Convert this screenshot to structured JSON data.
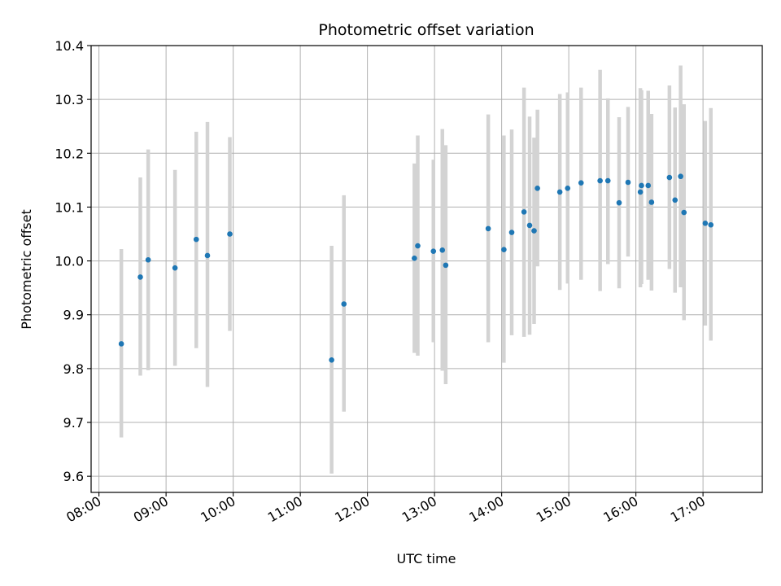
{
  "chart_data": {
    "type": "scatter",
    "title": "Photometric offset variation",
    "xlabel": "UTC time",
    "ylabel": "Photometric offset",
    "xlim": [
      "07:53",
      "17:53"
    ],
    "ylim": [
      9.57,
      10.4
    ],
    "grid": true,
    "x_ticks": [
      "08:00",
      "09:00",
      "10:00",
      "11:00",
      "12:00",
      "13:00",
      "14:00",
      "15:00",
      "16:00",
      "17:00"
    ],
    "y_ticks": [
      9.6,
      9.7,
      9.8,
      9.9,
      10.0,
      10.1,
      10.2,
      10.3,
      10.4
    ],
    "y_tick_labels": [
      "9.6",
      "9.7",
      "9.8",
      "9.9",
      "10.0",
      "10.1",
      "10.2",
      "10.3",
      "10.4"
    ],
    "colors": {
      "point": "#1f77b4",
      "errorbar": "#d3d3d3",
      "grid": "#b0b0b0"
    },
    "series": [
      {
        "points": [
          {
            "t": "08:20",
            "y": 9.846,
            "lo": 9.672,
            "hi": 10.022
          },
          {
            "t": "08:37",
            "y": 9.97,
            "lo": 9.787,
            "hi": 10.155
          },
          {
            "t": "08:44",
            "y": 10.002,
            "lo": 9.797,
            "hi": 10.207
          },
          {
            "t": "09:08",
            "y": 9.987,
            "lo": 9.805,
            "hi": 10.169
          },
          {
            "t": "09:27",
            "y": 10.04,
            "lo": 9.838,
            "hi": 10.24
          },
          {
            "t": "09:37",
            "y": 10.01,
            "lo": 9.766,
            "hi": 10.258
          },
          {
            "t": "09:57",
            "y": 10.05,
            "lo": 9.87,
            "hi": 10.23
          },
          {
            "t": "11:28",
            "y": 9.816,
            "lo": 9.605,
            "hi": 10.028
          },
          {
            "t": "11:39",
            "y": 9.92,
            "lo": 9.72,
            "hi": 10.122
          },
          {
            "t": "12:42",
            "y": 10.005,
            "lo": 9.829,
            "hi": 10.181
          },
          {
            "t": "12:45",
            "y": 10.028,
            "lo": 9.824,
            "hi": 10.233
          },
          {
            "t": "12:59",
            "y": 10.018,
            "lo": 9.849,
            "hi": 10.188
          },
          {
            "t": "13:07",
            "y": 10.02,
            "lo": 9.796,
            "hi": 10.245
          },
          {
            "t": "13:10",
            "y": 9.992,
            "lo": 9.771,
            "hi": 10.215
          },
          {
            "t": "13:48",
            "y": 10.06,
            "lo": 9.849,
            "hi": 10.272
          },
          {
            "t": "14:02",
            "y": 10.021,
            "lo": 9.811,
            "hi": 10.233
          },
          {
            "t": "14:09",
            "y": 10.053,
            "lo": 9.862,
            "hi": 10.244
          },
          {
            "t": "14:20",
            "y": 10.091,
            "lo": 9.859,
            "hi": 10.322
          },
          {
            "t": "14:25",
            "y": 10.066,
            "lo": 9.863,
            "hi": 10.268
          },
          {
            "t": "14:29",
            "y": 10.056,
            "lo": 9.883,
            "hi": 10.229
          },
          {
            "t": "14:32",
            "y": 10.135,
            "lo": 9.99,
            "hi": 10.281
          },
          {
            "t": "14:52",
            "y": 10.128,
            "lo": 9.946,
            "hi": 10.31
          },
          {
            "t": "14:59",
            "y": 10.135,
            "lo": 9.958,
            "hi": 10.313
          },
          {
            "t": "15:11",
            "y": 10.145,
            "lo": 9.965,
            "hi": 10.322
          },
          {
            "t": "15:28",
            "y": 10.149,
            "lo": 9.944,
            "hi": 10.355
          },
          {
            "t": "15:35",
            "y": 10.149,
            "lo": 9.994,
            "hi": 10.302
          },
          {
            "t": "15:45",
            "y": 10.108,
            "lo": 9.949,
            "hi": 10.267
          },
          {
            "t": "15:53",
            "y": 10.146,
            "lo": 10.008,
            "hi": 10.286
          },
          {
            "t": "16:04",
            "y": 10.128,
            "lo": 9.951,
            "hi": 10.321
          },
          {
            "t": "16:05",
            "y": 10.14,
            "lo": 9.957,
            "hi": 10.317
          },
          {
            "t": "16:11",
            "y": 10.14,
            "lo": 9.965,
            "hi": 10.316
          },
          {
            "t": "16:14",
            "y": 10.109,
            "lo": 9.945,
            "hi": 10.273
          },
          {
            "t": "16:30",
            "y": 10.155,
            "lo": 9.985,
            "hi": 10.326
          },
          {
            "t": "16:35",
            "y": 10.113,
            "lo": 9.941,
            "hi": 10.285
          },
          {
            "t": "16:40",
            "y": 10.157,
            "lo": 9.951,
            "hi": 10.363
          },
          {
            "t": "16:43",
            "y": 10.09,
            "lo": 9.89,
            "hi": 10.291
          },
          {
            "t": "17:02",
            "y": 10.07,
            "lo": 9.88,
            "hi": 10.26
          },
          {
            "t": "17:07",
            "y": 10.067,
            "lo": 9.852,
            "hi": 10.284
          }
        ]
      }
    ]
  }
}
